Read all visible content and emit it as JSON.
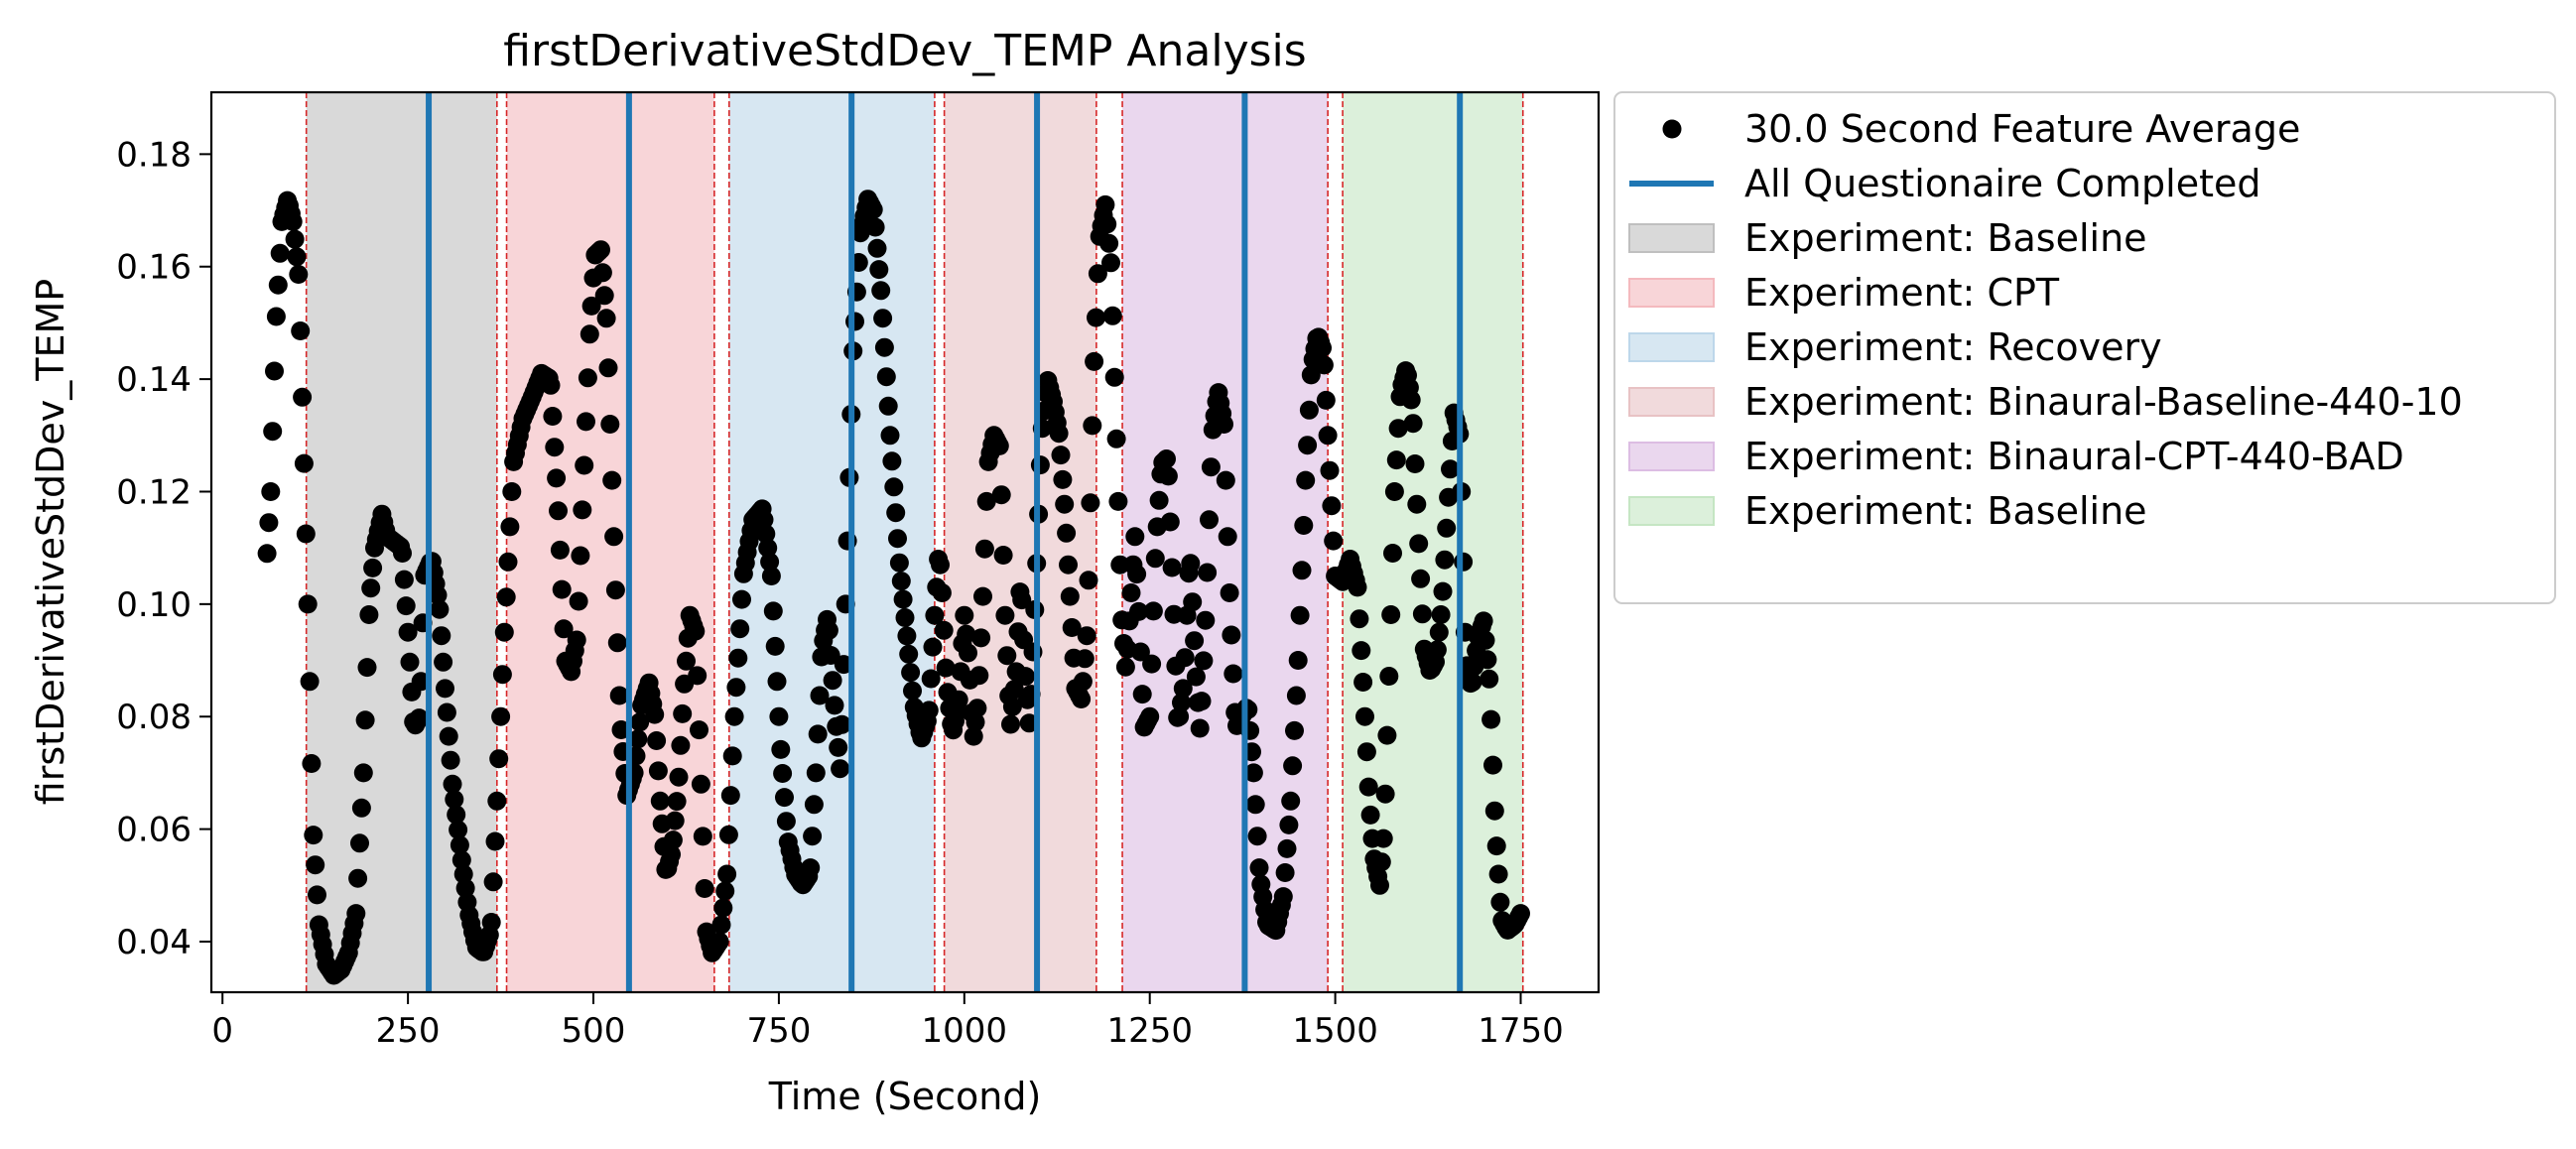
{
  "chart_data": {
    "type": "scatter",
    "title": "firstDerivativeStdDev_TEMP Analysis",
    "xlabel": "Time (Second)",
    "ylabel": "firstDerivativeStdDev_TEMP",
    "xlim": [
      -15,
      1855
    ],
    "ylim": [
      0.031,
      0.191
    ],
    "xticks": [
      0,
      250,
      500,
      750,
      1000,
      1250,
      1500,
      1750
    ],
    "yticks": [
      0.04,
      0.06,
      0.08,
      0.1,
      0.12,
      0.14,
      0.16,
      0.18
    ],
    "xtick_labels": [
      "0",
      "250",
      "500",
      "750",
      "1000",
      "1250",
      "1500",
      "1750"
    ],
    "ytick_labels": [
      "0.04",
      "0.06",
      "0.08",
      "0.10",
      "0.12",
      "0.14",
      "0.16",
      "0.18"
    ],
    "grid": false,
    "legend_position": "outside-right-top",
    "marker_color": "#000000",
    "questionnaire_color": "#1f77b4",
    "boundary_color": "#d62728",
    "series": [
      {
        "name": "30.0 Second Feature Average",
        "keypoints": [
          [
            60,
            0.109
          ],
          [
            65,
            0.12
          ],
          [
            72,
            0.15
          ],
          [
            80,
            0.168
          ],
          [
            88,
            0.172
          ],
          [
            95,
            0.168
          ],
          [
            103,
            0.158
          ],
          [
            110,
            0.125
          ],
          [
            116,
            0.095
          ],
          [
            122,
            0.06
          ],
          [
            130,
            0.043
          ],
          [
            140,
            0.036
          ],
          [
            150,
            0.034
          ],
          [
            160,
            0.035
          ],
          [
            170,
            0.038
          ],
          [
            180,
            0.045
          ],
          [
            190,
            0.07
          ],
          [
            198,
            0.1
          ],
          [
            205,
            0.11
          ],
          [
            215,
            0.116
          ],
          [
            222,
            0.112
          ],
          [
            232,
            0.111
          ],
          [
            242,
            0.11
          ],
          [
            250,
            0.095
          ],
          [
            258,
            0.078
          ],
          [
            266,
            0.08
          ],
          [
            272,
            0.105
          ],
          [
            282,
            0.108
          ],
          [
            292,
            0.1
          ],
          [
            300,
            0.085
          ],
          [
            310,
            0.068
          ],
          [
            322,
            0.055
          ],
          [
            332,
            0.045
          ],
          [
            342,
            0.039
          ],
          [
            352,
            0.038
          ],
          [
            362,
            0.042
          ],
          [
            370,
            0.065
          ],
          [
            380,
            0.095
          ],
          [
            392,
            0.125
          ],
          [
            405,
            0.133
          ],
          [
            418,
            0.137
          ],
          [
            430,
            0.141
          ],
          [
            442,
            0.14
          ],
          [
            452,
            0.118
          ],
          [
            462,
            0.09
          ],
          [
            470,
            0.088
          ],
          [
            478,
            0.094
          ],
          [
            486,
            0.12
          ],
          [
            495,
            0.148
          ],
          [
            502,
            0.162
          ],
          [
            510,
            0.163
          ],
          [
            518,
            0.15
          ],
          [
            528,
            0.11
          ],
          [
            536,
            0.08
          ],
          [
            545,
            0.066
          ],
          [
            555,
            0.07
          ],
          [
            565,
            0.082
          ],
          [
            575,
            0.086
          ],
          [
            583,
            0.08
          ],
          [
            590,
            0.065
          ],
          [
            598,
            0.052
          ],
          [
            606,
            0.056
          ],
          [
            614,
            0.067
          ],
          [
            622,
            0.085
          ],
          [
            630,
            0.098
          ],
          [
            638,
            0.095
          ],
          [
            645,
            0.068
          ],
          [
            652,
            0.042
          ],
          [
            660,
            0.038
          ],
          [
            670,
            0.04
          ],
          [
            680,
            0.052
          ],
          [
            690,
            0.08
          ],
          [
            702,
            0.105
          ],
          [
            715,
            0.115
          ],
          [
            728,
            0.117
          ],
          [
            740,
            0.105
          ],
          [
            752,
            0.075
          ],
          [
            762,
            0.058
          ],
          [
            772,
            0.052
          ],
          [
            782,
            0.05
          ],
          [
            792,
            0.052
          ],
          [
            800,
            0.07
          ],
          [
            808,
            0.092
          ],
          [
            816,
            0.098
          ],
          [
            825,
            0.082
          ],
          [
            833,
            0.07
          ],
          [
            840,
            0.1
          ],
          [
            850,
            0.145
          ],
          [
            860,
            0.166
          ],
          [
            870,
            0.172
          ],
          [
            878,
            0.17
          ],
          [
            888,
            0.155
          ],
          [
            900,
            0.13
          ],
          [
            912,
            0.108
          ],
          [
            922,
            0.095
          ],
          [
            932,
            0.082
          ],
          [
            942,
            0.076
          ],
          [
            952,
            0.08
          ],
          [
            960,
            0.098
          ],
          [
            966,
            0.11
          ],
          [
            970,
            0.102
          ],
          [
            976,
            0.086
          ],
          [
            984,
            0.077
          ],
          [
            992,
            0.082
          ],
          [
            1000,
            0.098
          ],
          [
            1006,
            0.09
          ],
          [
            1012,
            0.076
          ],
          [
            1018,
            0.082
          ],
          [
            1024,
            0.098
          ],
          [
            1032,
            0.125
          ],
          [
            1040,
            0.13
          ],
          [
            1048,
            0.128
          ],
          [
            1055,
            0.098
          ],
          [
            1062,
            0.078
          ],
          [
            1070,
            0.088
          ],
          [
            1076,
            0.105
          ],
          [
            1082,
            0.088
          ],
          [
            1088,
            0.078
          ],
          [
            1096,
            0.102
          ],
          [
            1104,
            0.13
          ],
          [
            1112,
            0.14
          ],
          [
            1120,
            0.136
          ],
          [
            1128,
            0.13
          ],
          [
            1136,
            0.116
          ],
          [
            1144,
            0.098
          ],
          [
            1150,
            0.085
          ],
          [
            1158,
            0.083
          ],
          [
            1166,
            0.096
          ],
          [
            1174,
            0.14
          ],
          [
            1182,
            0.165
          ],
          [
            1190,
            0.171
          ],
          [
            1198,
            0.16
          ],
          [
            1206,
            0.125
          ],
          [
            1212,
            0.098
          ],
          [
            1218,
            0.088
          ],
          [
            1224,
            0.1
          ],
          [
            1230,
            0.112
          ],
          [
            1236,
            0.096
          ],
          [
            1242,
            0.078
          ],
          [
            1250,
            0.08
          ],
          [
            1258,
            0.11
          ],
          [
            1266,
            0.125
          ],
          [
            1274,
            0.126
          ],
          [
            1282,
            0.1
          ],
          [
            1288,
            0.078
          ],
          [
            1296,
            0.086
          ],
          [
            1304,
            0.11
          ],
          [
            1312,
            0.088
          ],
          [
            1318,
            0.077
          ],
          [
            1326,
            0.1
          ],
          [
            1334,
            0.13
          ],
          [
            1342,
            0.138
          ],
          [
            1350,
            0.132
          ],
          [
            1358,
            0.1
          ],
          [
            1366,
            0.078
          ],
          [
            1374,
            0.08
          ],
          [
            1382,
            0.082
          ],
          [
            1390,
            0.07
          ],
          [
            1398,
            0.052
          ],
          [
            1408,
            0.043
          ],
          [
            1420,
            0.042
          ],
          [
            1430,
            0.048
          ],
          [
            1440,
            0.065
          ],
          [
            1450,
            0.09
          ],
          [
            1460,
            0.122
          ],
          [
            1468,
            0.142
          ],
          [
            1476,
            0.148
          ],
          [
            1484,
            0.145
          ],
          [
            1492,
            0.125
          ],
          [
            1500,
            0.105
          ],
          [
            1510,
            0.104
          ],
          [
            1520,
            0.108
          ],
          [
            1530,
            0.103
          ],
          [
            1538,
            0.085
          ],
          [
            1546,
            0.065
          ],
          [
            1552,
            0.055
          ],
          [
            1560,
            0.05
          ],
          [
            1566,
            0.06
          ],
          [
            1572,
            0.085
          ],
          [
            1580,
            0.12
          ],
          [
            1588,
            0.138
          ],
          [
            1596,
            0.142
          ],
          [
            1604,
            0.135
          ],
          [
            1612,
            0.112
          ],
          [
            1620,
            0.092
          ],
          [
            1628,
            0.088
          ],
          [
            1636,
            0.09
          ],
          [
            1644,
            0.1
          ],
          [
            1652,
            0.118
          ],
          [
            1660,
            0.134
          ],
          [
            1668,
            0.13
          ],
          [
            1676,
            0.09
          ],
          [
            1684,
            0.085
          ],
          [
            1692,
            0.094
          ],
          [
            1700,
            0.097
          ],
          [
            1708,
            0.086
          ],
          [
            1716,
            0.06
          ],
          [
            1724,
            0.044
          ],
          [
            1732,
            0.042
          ],
          [
            1742,
            0.043
          ],
          [
            1750,
            0.045
          ]
        ]
      },
      {
        "name": "All Questionaire Completed",
        "x": [
          278,
          548,
          848,
          1098,
          1378,
          1668
        ]
      }
    ],
    "phases": [
      {
        "name": "Experiment: Baseline",
        "start": 113,
        "end": 370,
        "color": "#bfbfbf"
      },
      {
        "name": "Experiment: CPT",
        "start": 383,
        "end": 663,
        "color": "#f4b9be"
      },
      {
        "name": "Experiment: Recovery",
        "start": 683,
        "end": 960,
        "color": "#bdd7ea"
      },
      {
        "name": "Experiment: Binaural-Baseline-440-10",
        "start": 973,
        "end": 1178,
        "color": "#e8c2c4"
      },
      {
        "name": "Experiment: Binaural-CPT-440-BAD",
        "start": 1213,
        "end": 1490,
        "color": "#dcbde3"
      },
      {
        "name": "Experiment: Baseline",
        "start": 1510,
        "end": 1753,
        "color": "#c5e6c3"
      }
    ],
    "phase_boundaries": [
      113,
      370,
      383,
      663,
      683,
      960,
      973,
      1178,
      1213,
      1490,
      1510,
      1753
    ]
  }
}
